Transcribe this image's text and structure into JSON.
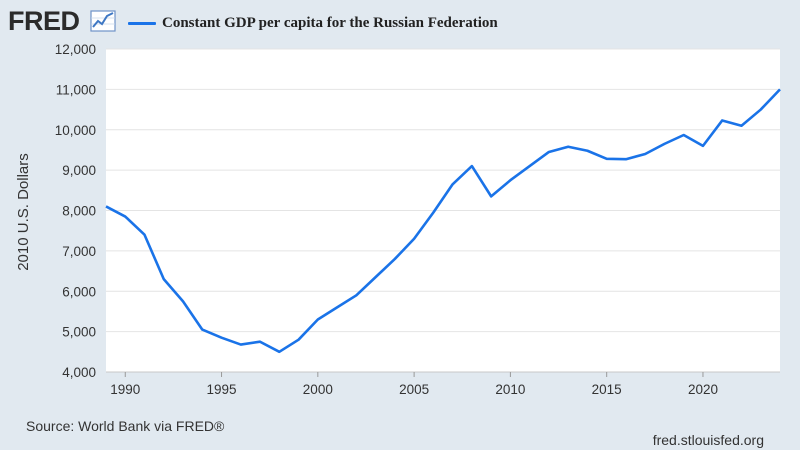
{
  "header": {
    "logo_text": "FRED",
    "logo_icon": "trend-line-icon",
    "legend_label": "Constant GDP per capita for the Russian Federation"
  },
  "footer": {
    "source": "Source: World Bank via FRED®",
    "site": "fred.stlouisfed.org"
  },
  "chart_data": {
    "type": "line",
    "title": "",
    "xlabel": "",
    "ylabel": "2010 U.S. Dollars",
    "xlim": [
      1989,
      2024
    ],
    "ylim": [
      4000,
      12000
    ],
    "x_ticks": [
      1990,
      1995,
      2000,
      2005,
      2010,
      2015,
      2020
    ],
    "y_ticks": [
      4000,
      5000,
      6000,
      7000,
      8000,
      9000,
      10000,
      11000,
      12000
    ],
    "y_tick_labels": [
      "4,000",
      "5,000",
      "6,000",
      "7,000",
      "8,000",
      "9,000",
      "10,000",
      "11,000",
      "12,000"
    ],
    "grid": "horizontal",
    "legend": "top-left",
    "series": [
      {
        "name": "Constant GDP per capita for the Russian Federation",
        "color": "#1a73e8",
        "x": [
          1989,
          1990,
          1991,
          1992,
          1993,
          1994,
          1995,
          1996,
          1997,
          1998,
          1999,
          2000,
          2001,
          2002,
          2003,
          2004,
          2005,
          2006,
          2007,
          2008,
          2009,
          2010,
          2011,
          2012,
          2013,
          2014,
          2015,
          2016,
          2017,
          2018,
          2019,
          2020,
          2021,
          2022,
          2023,
          2024
        ],
        "values": [
          8100,
          7850,
          7400,
          6300,
          5750,
          5050,
          4850,
          4680,
          4750,
          4500,
          4800,
          5300,
          5600,
          5900,
          6350,
          6800,
          7300,
          7950,
          8650,
          9100,
          8350,
          8750,
          9100,
          9450,
          9580,
          9480,
          9280,
          9270,
          9400,
          9650,
          9870,
          9600,
          10230,
          10100,
          10500,
          11000
        ]
      }
    ]
  }
}
